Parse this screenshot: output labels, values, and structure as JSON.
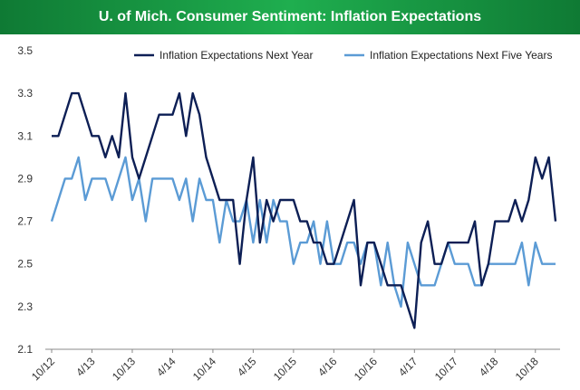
{
  "header": {
    "title": "U. of Mich. Consumer Sentiment: Inflation Expectations"
  },
  "colors": {
    "next_year": "#0d1f55",
    "five_year": "#5b9bd5",
    "title_bg": "#1a9a45"
  },
  "chart_data": {
    "type": "line",
    "title": "U. of Mich. Consumer Sentiment: Inflation Expectations",
    "xlabel": "",
    "ylabel": "",
    "ylim": [
      2.1,
      3.5
    ],
    "y_ticks": [
      "3.5",
      "3.3",
      "3.1",
      "2.9",
      "2.7",
      "2.5",
      "2.3",
      "2.1"
    ],
    "x_ticks": [
      {
        "i": 0,
        "label": "10/12"
      },
      {
        "i": 6,
        "label": "4/13"
      },
      {
        "i": 12,
        "label": "10/13"
      },
      {
        "i": 18,
        "label": "4/14"
      },
      {
        "i": 24,
        "label": "10/14"
      },
      {
        "i": 30,
        "label": "4/15"
      },
      {
        "i": 36,
        "label": "10/15"
      },
      {
        "i": 42,
        "label": "4/16"
      },
      {
        "i": 48,
        "label": "10/16"
      },
      {
        "i": 54,
        "label": "4/17"
      },
      {
        "i": 60,
        "label": "10/17"
      },
      {
        "i": 66,
        "label": "4/18"
      },
      {
        "i": 72,
        "label": "10/18"
      }
    ],
    "legend_position": "top",
    "series": [
      {
        "name": "Inflation Expectations Next Year",
        "values": [
          3.1,
          3.1,
          3.2,
          3.3,
          3.3,
          3.2,
          3.1,
          3.1,
          3.0,
          3.1,
          3.0,
          3.3,
          3.0,
          2.9,
          3.0,
          3.1,
          3.2,
          3.2,
          3.2,
          3.3,
          3.1,
          3.3,
          3.2,
          3.0,
          2.9,
          2.8,
          2.8,
          2.8,
          2.5,
          2.8,
          3.0,
          2.6,
          2.8,
          2.7,
          2.8,
          2.8,
          2.8,
          2.7,
          2.7,
          2.6,
          2.6,
          2.5,
          2.5,
          2.6,
          2.7,
          2.8,
          2.4,
          2.6,
          2.6,
          2.5,
          2.4,
          2.4,
          2.4,
          2.3,
          2.2,
          2.6,
          2.7,
          2.5,
          2.5,
          2.6,
          2.6,
          2.6,
          2.6,
          2.7,
          2.4,
          2.5,
          2.7,
          2.7,
          2.7,
          2.8,
          2.7,
          2.8,
          3.0,
          2.9,
          3.0,
          2.7
        ]
      },
      {
        "name": "Inflation Expectations Next Five Years",
        "values": [
          2.7,
          2.8,
          2.9,
          2.9,
          3.0,
          2.8,
          2.9,
          2.9,
          2.9,
          2.8,
          2.9,
          3.0,
          2.8,
          2.9,
          2.7,
          2.9,
          2.9,
          2.9,
          2.9,
          2.8,
          2.9,
          2.7,
          2.9,
          2.8,
          2.8,
          2.6,
          2.8,
          2.7,
          2.7,
          2.8,
          2.6,
          2.8,
          2.6,
          2.8,
          2.7,
          2.7,
          2.5,
          2.6,
          2.6,
          2.7,
          2.5,
          2.7,
          2.5,
          2.5,
          2.6,
          2.6,
          2.5,
          2.6,
          2.6,
          2.4,
          2.6,
          2.4,
          2.3,
          2.6,
          2.5,
          2.4,
          2.4,
          2.4,
          2.5,
          2.6,
          2.5,
          2.5,
          2.5,
          2.4,
          2.4,
          2.5,
          2.5,
          2.5,
          2.5,
          2.5,
          2.6,
          2.4,
          2.6,
          2.5,
          2.5,
          2.5
        ]
      }
    ]
  }
}
